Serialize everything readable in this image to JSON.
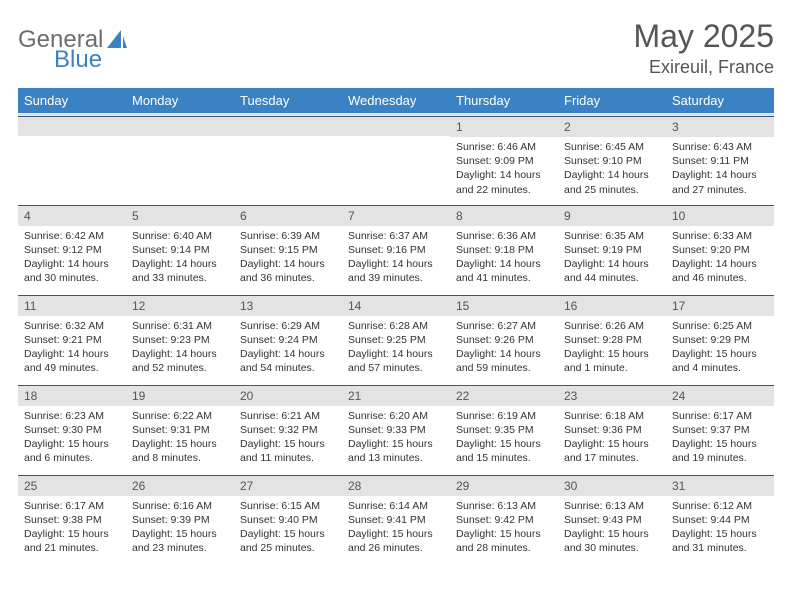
{
  "brand": {
    "part1": "General",
    "part2": "Blue"
  },
  "title": "May 2025",
  "location": "Exireuil, France",
  "header_bg": "#3b82c4",
  "daynum_bg": "#e3e3e3",
  "columns": [
    "Sunday",
    "Monday",
    "Tuesday",
    "Wednesday",
    "Thursday",
    "Friday",
    "Saturday"
  ],
  "weeks": [
    [
      null,
      null,
      null,
      null,
      {
        "n": "1",
        "sr": "6:46 AM",
        "ss": "9:09 PM",
        "dl": "14 hours and 22 minutes."
      },
      {
        "n": "2",
        "sr": "6:45 AM",
        "ss": "9:10 PM",
        "dl": "14 hours and 25 minutes."
      },
      {
        "n": "3",
        "sr": "6:43 AM",
        "ss": "9:11 PM",
        "dl": "14 hours and 27 minutes."
      }
    ],
    [
      {
        "n": "4",
        "sr": "6:42 AM",
        "ss": "9:12 PM",
        "dl": "14 hours and 30 minutes."
      },
      {
        "n": "5",
        "sr": "6:40 AM",
        "ss": "9:14 PM",
        "dl": "14 hours and 33 minutes."
      },
      {
        "n": "6",
        "sr": "6:39 AM",
        "ss": "9:15 PM",
        "dl": "14 hours and 36 minutes."
      },
      {
        "n": "7",
        "sr": "6:37 AM",
        "ss": "9:16 PM",
        "dl": "14 hours and 39 minutes."
      },
      {
        "n": "8",
        "sr": "6:36 AM",
        "ss": "9:18 PM",
        "dl": "14 hours and 41 minutes."
      },
      {
        "n": "9",
        "sr": "6:35 AM",
        "ss": "9:19 PM",
        "dl": "14 hours and 44 minutes."
      },
      {
        "n": "10",
        "sr": "6:33 AM",
        "ss": "9:20 PM",
        "dl": "14 hours and 46 minutes."
      }
    ],
    [
      {
        "n": "11",
        "sr": "6:32 AM",
        "ss": "9:21 PM",
        "dl": "14 hours and 49 minutes."
      },
      {
        "n": "12",
        "sr": "6:31 AM",
        "ss": "9:23 PM",
        "dl": "14 hours and 52 minutes."
      },
      {
        "n": "13",
        "sr": "6:29 AM",
        "ss": "9:24 PM",
        "dl": "14 hours and 54 minutes."
      },
      {
        "n": "14",
        "sr": "6:28 AM",
        "ss": "9:25 PM",
        "dl": "14 hours and 57 minutes."
      },
      {
        "n": "15",
        "sr": "6:27 AM",
        "ss": "9:26 PM",
        "dl": "14 hours and 59 minutes."
      },
      {
        "n": "16",
        "sr": "6:26 AM",
        "ss": "9:28 PM",
        "dl": "15 hours and 1 minute."
      },
      {
        "n": "17",
        "sr": "6:25 AM",
        "ss": "9:29 PM",
        "dl": "15 hours and 4 minutes."
      }
    ],
    [
      {
        "n": "18",
        "sr": "6:23 AM",
        "ss": "9:30 PM",
        "dl": "15 hours and 6 minutes."
      },
      {
        "n": "19",
        "sr": "6:22 AM",
        "ss": "9:31 PM",
        "dl": "15 hours and 8 minutes."
      },
      {
        "n": "20",
        "sr": "6:21 AM",
        "ss": "9:32 PM",
        "dl": "15 hours and 11 minutes."
      },
      {
        "n": "21",
        "sr": "6:20 AM",
        "ss": "9:33 PM",
        "dl": "15 hours and 13 minutes."
      },
      {
        "n": "22",
        "sr": "6:19 AM",
        "ss": "9:35 PM",
        "dl": "15 hours and 15 minutes."
      },
      {
        "n": "23",
        "sr": "6:18 AM",
        "ss": "9:36 PM",
        "dl": "15 hours and 17 minutes."
      },
      {
        "n": "24",
        "sr": "6:17 AM",
        "ss": "9:37 PM",
        "dl": "15 hours and 19 minutes."
      }
    ],
    [
      {
        "n": "25",
        "sr": "6:17 AM",
        "ss": "9:38 PM",
        "dl": "15 hours and 21 minutes."
      },
      {
        "n": "26",
        "sr": "6:16 AM",
        "ss": "9:39 PM",
        "dl": "15 hours and 23 minutes."
      },
      {
        "n": "27",
        "sr": "6:15 AM",
        "ss": "9:40 PM",
        "dl": "15 hours and 25 minutes."
      },
      {
        "n": "28",
        "sr": "6:14 AM",
        "ss": "9:41 PM",
        "dl": "15 hours and 26 minutes."
      },
      {
        "n": "29",
        "sr": "6:13 AM",
        "ss": "9:42 PM",
        "dl": "15 hours and 28 minutes."
      },
      {
        "n": "30",
        "sr": "6:13 AM",
        "ss": "9:43 PM",
        "dl": "15 hours and 30 minutes."
      },
      {
        "n": "31",
        "sr": "6:12 AM",
        "ss": "9:44 PM",
        "dl": "15 hours and 31 minutes."
      }
    ]
  ],
  "labels": {
    "sunrise": "Sunrise: ",
    "sunset": "Sunset: ",
    "daylight": "Daylight: "
  }
}
